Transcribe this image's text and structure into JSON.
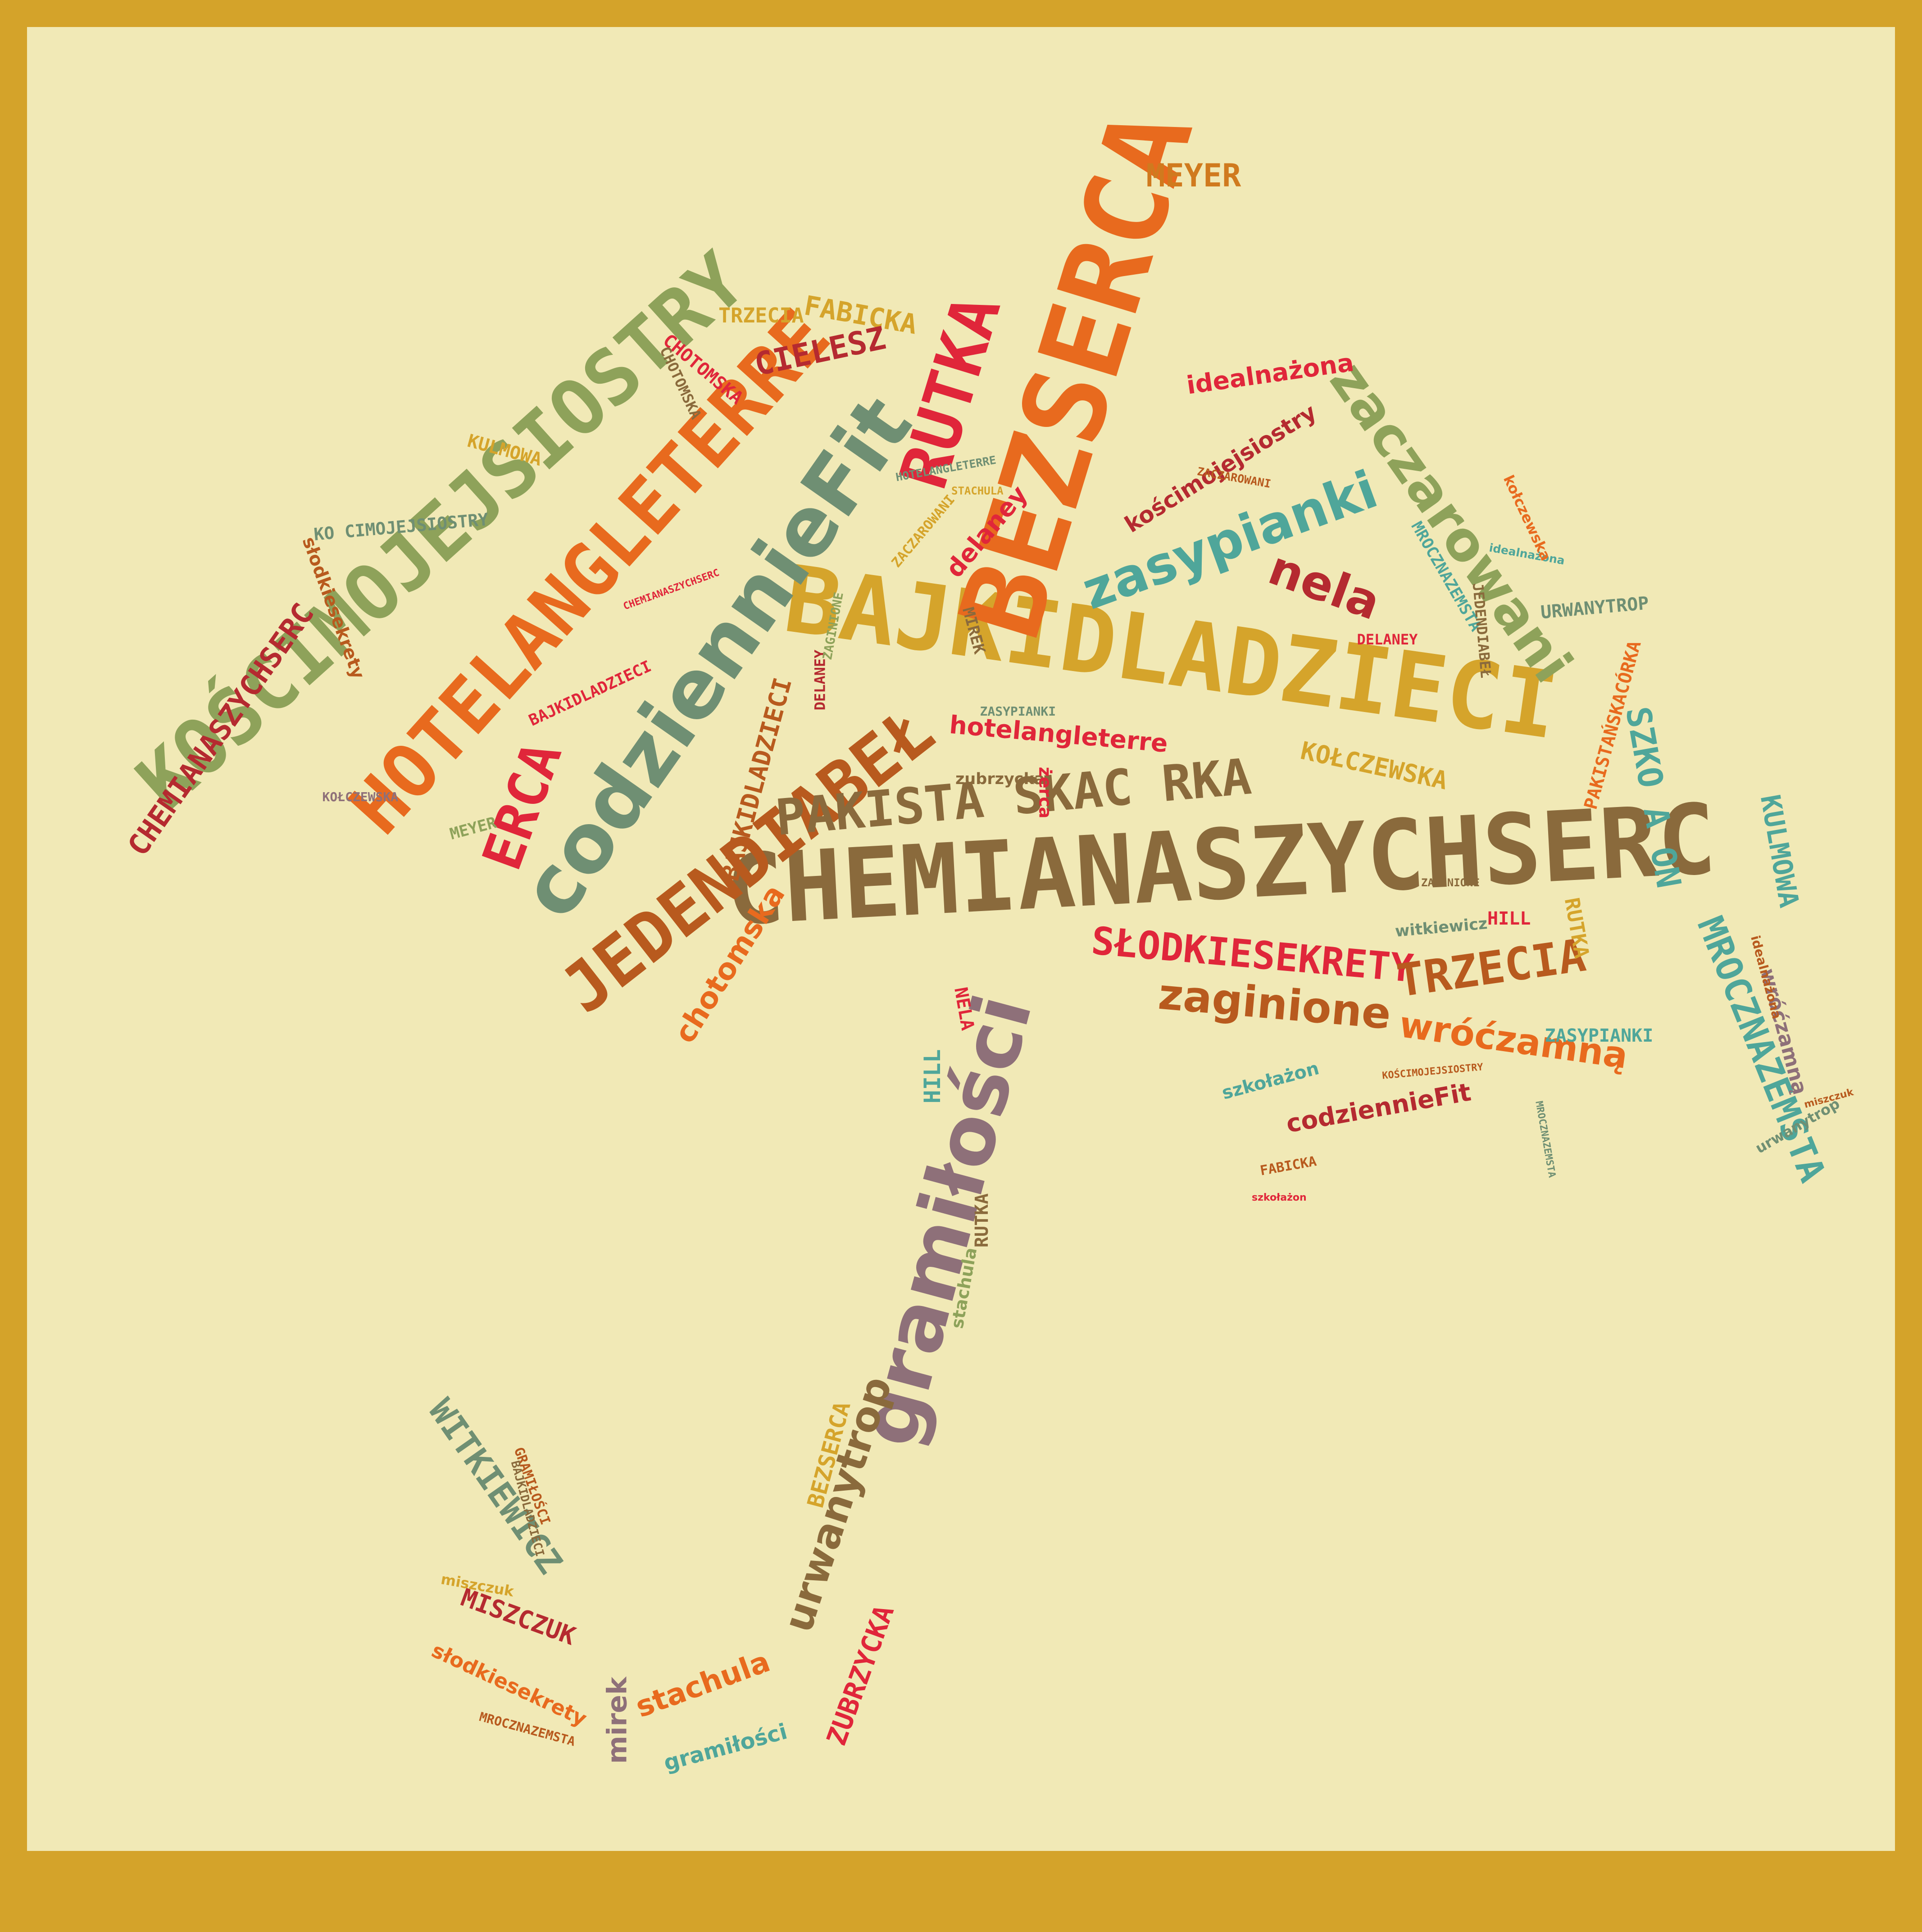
{
  "title": "",
  "shape": "umbrella",
  "colors": {
    "border": "#d4a32a",
    "background": "#f1e9b6",
    "red": "#e0263a",
    "orange": "#e86a1e",
    "brown": "#8a6a3c",
    "gold": "#d5a42b",
    "teal": "#4fa69a",
    "olive": "#8ea25a",
    "green": "#6f8f73",
    "mauve": "#8e7079",
    "rust": "#b85a1e",
    "darkred": "#b52a30"
  },
  "words": [
    {
      "text": "CHEMIANASZYCHSERC",
      "color": "#8a6a3c"
    },
    {
      "text": "BAJKIDLADZIECI",
      "color": "#d5a42b"
    },
    {
      "text": "BEZSERCA",
      "color": "#e86a1e"
    },
    {
      "text": "HOTELANGLETERRE",
      "color": "#e86a1e"
    },
    {
      "text": "KOŚCIMOJEJSIOSTRY",
      "color": "#8ea25a"
    },
    {
      "text": "codziennieFit",
      "color": "#6f8f73"
    },
    {
      "text": "RUTKA",
      "color": "#e0263a"
    },
    {
      "text": "JEDENDIABEŁ",
      "color": "#b85a1e"
    },
    {
      "text": "gramiłości",
      "color": "#8e7079"
    },
    {
      "text": "PAKISTA SKAC RKA",
      "color": "#8a6a3c"
    },
    {
      "text": "zasypianki",
      "color": "#4fa69a"
    },
    {
      "text": "zaczarowani",
      "color": "#8ea25a"
    },
    {
      "text": "SŁODKIESEKRETY",
      "color": "#e0263a"
    },
    {
      "text": "ERCA",
      "color": "#e0263a"
    },
    {
      "text": "CHEMIANASZYCHSERC",
      "color": "#b52a30"
    },
    {
      "text": "MROCZNAZEMSTA",
      "color": "#4fa69a"
    },
    {
      "text": "TRZECIA",
      "color": "#b85a1e"
    },
    {
      "text": "zaginione",
      "color": "#b85a1e"
    },
    {
      "text": "wróćzamną",
      "color": "#e86a1e"
    },
    {
      "text": "urwanytrop",
      "color": "#8a6a3c"
    },
    {
      "text": "nela",
      "color": "#b52a30"
    },
    {
      "text": "MEYER",
      "color": "#d07a1e"
    },
    {
      "text": "FABICKA",
      "color": "#d5a42b"
    },
    {
      "text": "CIELESZ",
      "color": "#b52a30"
    },
    {
      "text": "TRZECIA",
      "color": "#d5a42b"
    },
    {
      "text": "CHOTOMSKA",
      "color": "#e0263a"
    },
    {
      "text": "KULMOWA",
      "color": "#d5a42b"
    },
    {
      "text": "KO CIMOJEJSIOSTRY",
      "color": "#6f8f73"
    },
    {
      "text": "słodkiesekrety",
      "color": "#b85a1e"
    },
    {
      "text": "idealnażona",
      "color": "#e0263a"
    },
    {
      "text": "kościmojejsiostry",
      "color": "#b52a30"
    },
    {
      "text": "delaney",
      "color": "#e0263a"
    },
    {
      "text": "hotelangleterre",
      "color": "#e0263a"
    },
    {
      "text": "KOŁCZEWSKA",
      "color": "#d5a42b"
    },
    {
      "text": "SZKO A ON",
      "color": "#4fa69a"
    },
    {
      "text": "KULMOWA",
      "color": "#4fa69a"
    },
    {
      "text": "MROCZNAZEMSTA",
      "color": "#4fa69a"
    },
    {
      "text": "URWANYTROP",
      "color": "#6f8f73"
    },
    {
      "text": "PAKISTAŃSKACÓRKA",
      "color": "#e86a1e"
    },
    {
      "text": "chotomska",
      "color": "#e86a1e"
    },
    {
      "text": "codziennieFit",
      "color": "#b52a30"
    },
    {
      "text": "szkołażon",
      "color": "#4fa69a"
    },
    {
      "text": "ZASYPIANKI",
      "color": "#4fa69a"
    },
    {
      "text": "witkiewicz",
      "color": "#6f8f73"
    },
    {
      "text": "HILL",
      "color": "#e0263a"
    },
    {
      "text": "RUTKA",
      "color": "#d5a42b"
    },
    {
      "text": "WITKIEWICZ",
      "color": "#6f8f73"
    },
    {
      "text": "MISZCZUK",
      "color": "#b52a30"
    },
    {
      "text": "słodkiesekrety",
      "color": "#e86a1e"
    },
    {
      "text": "stachula",
      "color": "#e86a1e"
    },
    {
      "text": "ZUBRZYCKA",
      "color": "#e0263a"
    },
    {
      "text": "gramiłości",
      "color": "#4fa69a"
    },
    {
      "text": "mirek",
      "color": "#8e7079"
    },
    {
      "text": "BEZSERCA",
      "color": "#d5a42b"
    },
    {
      "text": "HILL",
      "color": "#4fa69a"
    },
    {
      "text": "RUTKA",
      "color": "#8a6a3c"
    },
    {
      "text": "stachula",
      "color": "#8ea25a"
    },
    {
      "text": "BAJKIDLADZIECI",
      "color": "#b85a1e"
    },
    {
      "text": "DELANEY",
      "color": "#b52a30"
    },
    {
      "text": "ZAGINIONE",
      "color": "#8ea25a"
    },
    {
      "text": "JEDENDIABEŁ",
      "color": "#8a6a3c"
    },
    {
      "text": "NELA",
      "color": "#e0263a"
    },
    {
      "text": "zubrzycka",
      "color": "#8a6a3c"
    },
    {
      "text": "żerca",
      "color": "#e0263a"
    },
    {
      "text": "MIREK",
      "color": "#8a6a3c"
    },
    {
      "text": "BAJKIDLADZIECI",
      "color": "#e0263a"
    },
    {
      "text": "ZASYPIANKI",
      "color": "#6f8f73"
    },
    {
      "text": "MEYER",
      "color": "#8ea25a"
    },
    {
      "text": "KOŁCZEWSKA",
      "color": "#8e7079"
    },
    {
      "text": "CHEMIANASZYCHSERC",
      "color": "#e0263a"
    },
    {
      "text": "idealnażona",
      "color": "#4fa69a"
    },
    {
      "text": "ZACZAROWANI",
      "color": "#d5a42b"
    },
    {
      "text": "CHOTOMSKA",
      "color": "#8a6a3c"
    },
    {
      "text": "HOTELANGLETERRE",
      "color": "#6f8f73"
    },
    {
      "text": "MROCZNAZEMSTA",
      "color": "#6f8f73"
    },
    {
      "text": "DELANEY",
      "color": "#e0263a"
    },
    {
      "text": "FABICKA",
      "color": "#b85a1e"
    },
    {
      "text": "GRAMIŁOŚCI",
      "color": "#b85a1e"
    },
    {
      "text": "BAJKIDLADZIECI",
      "color": "#8a6a3c"
    },
    {
      "text": "miszczuk",
      "color": "#d5a42b"
    },
    {
      "text": "MROCZNAZEMSTA",
      "color": "#b85a1e"
    },
    {
      "text": "wróćzamną",
      "color": "#8e7079"
    },
    {
      "text": "urwanytrop",
      "color": "#6f8f73"
    },
    {
      "text": "miszczuk",
      "color": "#b85a1e"
    },
    {
      "text": "kołczewska",
      "color": "#e86a1e"
    },
    {
      "text": "idealnażona",
      "color": "#b85a1e"
    },
    {
      "text": "ZAGINIONE",
      "color": "#8a6a3c"
    },
    {
      "text": "STACHULA",
      "color": "#d5a42b"
    },
    {
      "text": "KOŚCIMOJEJSIOSTRY",
      "color": "#b85a1e"
    },
    {
      "text": "ZACZAROWANI",
      "color": "#b85a1e"
    },
    {
      "text": "szkołażon",
      "color": "#e0263a"
    }
  ]
}
